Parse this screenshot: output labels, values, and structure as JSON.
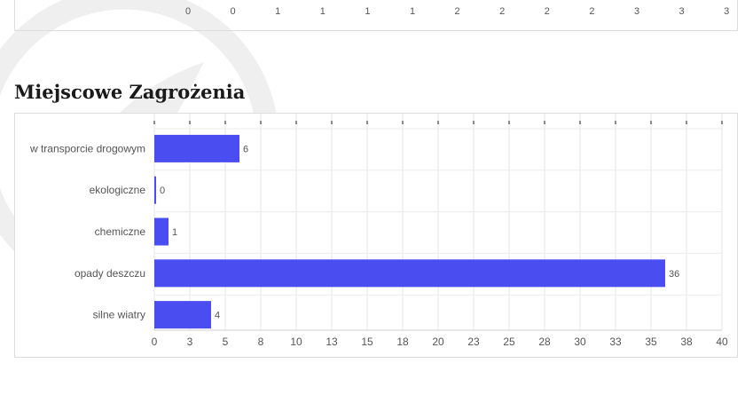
{
  "top_axis": {
    "tick_labels": [
      "0",
      "0",
      "1",
      "1",
      "1",
      "1",
      "2",
      "2",
      "2",
      "2",
      "3",
      "3",
      "3"
    ]
  },
  "section": {
    "title": "Miejscowe Zagrożenia"
  },
  "chart_data": {
    "type": "bar",
    "orientation": "horizontal",
    "title": "Miejscowe Zagrożenia",
    "categories": [
      "w transporcie drogowym",
      "ekologiczne",
      "chemiczne",
      "opady deszczu",
      "silne wiatry"
    ],
    "values": [
      6,
      0,
      1,
      36,
      4
    ],
    "xlim": [
      0,
      40
    ],
    "x_tick_labels": [
      "0",
      "3",
      "5",
      "8",
      "10",
      "13",
      "15",
      "18",
      "20",
      "23",
      "25",
      "28",
      "30",
      "33",
      "35",
      "38",
      "40"
    ],
    "data_labels": [
      "6",
      "0",
      "1",
      "36",
      "4"
    ],
    "bar_color": "#4a4df0",
    "grid": true,
    "xlabel": "",
    "ylabel": ""
  }
}
